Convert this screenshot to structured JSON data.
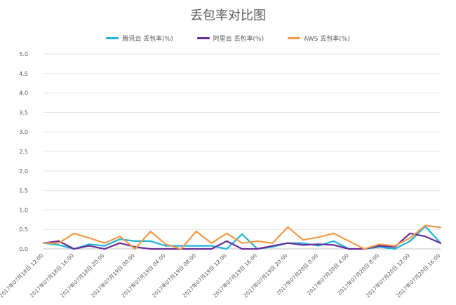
{
  "chart_data": {
    "type": "line",
    "title": "丢包率对比图",
    "xlabel": "",
    "ylabel": "",
    "ylim": [
      0,
      5
    ],
    "yticks": [
      "0.0",
      "0.5",
      "1.0",
      "1.5",
      "2.0",
      "2.5",
      "3.0",
      "3.5",
      "4.0",
      "4.5",
      "5.0"
    ],
    "grid": true,
    "legend_position": "top-center",
    "categories": [
      "2017年07月18日 12:00",
      "",
      "2017年07月18日 16:00",
      "",
      "2017年07月18日 20:00",
      "",
      "2017年07月19日 00:00",
      "",
      "2017年07月19日 04:00",
      "",
      "2017年07月19日 08:00",
      "",
      "2017年07月19日 12:00",
      "",
      "2017年07月19日 16:00",
      "",
      "2017年07月19日 20:00",
      "",
      "2017年07月20日 0:00",
      "",
      "2017年07月20日 4:00",
      "",
      "2017年07月20日 8:00",
      "",
      "2017年07月20日 12:00",
      "",
      "2017年07月20日 16:00"
    ],
    "series": [
      {
        "name": "腾讯云 丢包率(%)",
        "color": "#1EB4DC",
        "values": [
          0.15,
          0.1,
          0.0,
          0.12,
          0.08,
          0.25,
          0.2,
          0.2,
          0.08,
          0.08,
          0.08,
          0.08,
          0.0,
          0.38,
          0.0,
          0.05,
          0.15,
          0.15,
          0.08,
          0.2,
          0.0,
          0.0,
          0.05,
          0.0,
          0.2,
          0.58,
          0.15
        ]
      },
      {
        "name": "阿里云 丢包率(%)",
        "color": "#6A2C9A",
        "values": [
          0.15,
          0.2,
          0.0,
          0.08,
          0.0,
          0.15,
          0.05,
          0.0,
          0.0,
          0.0,
          0.0,
          0.0,
          0.2,
          0.0,
          0.0,
          0.08,
          0.15,
          0.1,
          0.12,
          0.1,
          0.0,
          0.0,
          0.08,
          0.05,
          0.4,
          0.32,
          0.15
        ]
      },
      {
        "name": "AWS 丢包率(%)",
        "color": "#F39A47",
        "values": [
          0.15,
          0.15,
          0.4,
          0.28,
          0.15,
          0.32,
          0.0,
          0.45,
          0.12,
          0.0,
          0.45,
          0.15,
          0.4,
          0.15,
          0.2,
          0.15,
          0.56,
          0.23,
          0.3,
          0.4,
          0.2,
          0.0,
          0.12,
          0.08,
          0.28,
          0.6,
          0.55
        ]
      }
    ]
  }
}
